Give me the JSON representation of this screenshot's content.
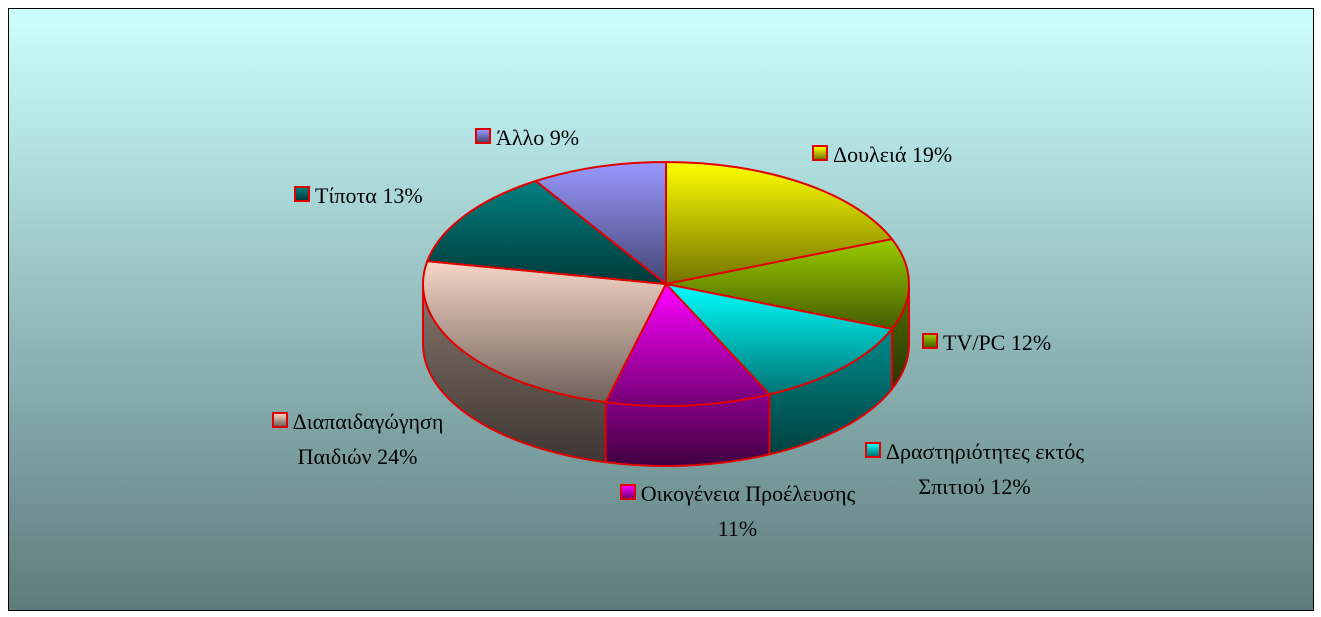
{
  "chart_data": {
    "type": "pie",
    "categories": [
      "Δουλειά",
      "TV/PC",
      "Δραστηριότητες εκτός Σπιτιού",
      "Οικογένεια Προέλευσης",
      "Διαπαιδαγώγηση Παιδιών",
      "Τίποτα",
      "Άλλο"
    ],
    "values": [
      19,
      12,
      12,
      11,
      24,
      13,
      9
    ],
    "value_labels": [
      "19%",
      "12%",
      "12%",
      "11%",
      "24%",
      "13%",
      "9%"
    ],
    "colors": [
      "#ffff00",
      "#99cc00",
      "#00ffff",
      "#ff00ff",
      "#f6d6c6",
      "#008080",
      "#9999ff"
    ]
  }
}
